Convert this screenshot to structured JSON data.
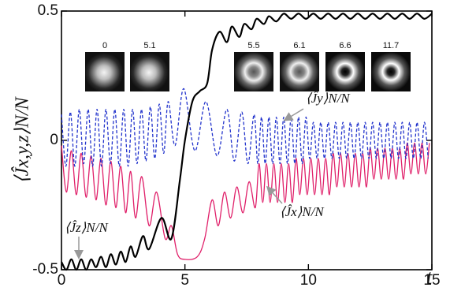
{
  "chart_data": {
    "type": "line",
    "x_label": "t",
    "y_label": "⟨Ĵx,y,z⟩N/N",
    "xlim": [
      0,
      15
    ],
    "ylim": [
      -0.5,
      0.5
    ],
    "xticks": [
      0,
      5,
      10,
      15
    ],
    "yticks": [
      -0.5,
      0,
      0.5
    ],
    "inset_times": [
      0,
      5.1,
      5.5,
      6.1,
      6.6,
      11.7
    ],
    "series": [
      {
        "name": "⟨Ĵz⟩N/N",
        "color": "#000000",
        "dash": false,
        "x": [
          0,
          0.2,
          0.4,
          0.6,
          0.8,
          1.0,
          1.2,
          1.4,
          1.6,
          1.8,
          2.0,
          2.2,
          2.4,
          2.6,
          2.8,
          3.0,
          3.3,
          3.55,
          4.05,
          4.45,
          4.8,
          5.0,
          5.3,
          5.6,
          5.9,
          6.1,
          6.4,
          6.7,
          6.9,
          7.2,
          7.4,
          7.7,
          7.9,
          8.2,
          8.4,
          8.7,
          9.0,
          9.3,
          9.6,
          9.9,
          10.2,
          10.5,
          10.8,
          11.1,
          11.4,
          11.7,
          12.0,
          12.3,
          12.6,
          12.9,
          13.2,
          13.5,
          13.8,
          14.1,
          14.4,
          14.7,
          15.0
        ],
        "values": [
          -0.47,
          -0.5,
          -0.46,
          -0.5,
          -0.46,
          -0.5,
          -0.46,
          -0.49,
          -0.45,
          -0.49,
          -0.44,
          -0.48,
          -0.43,
          -0.47,
          -0.41,
          -0.45,
          -0.37,
          -0.42,
          -0.3,
          -0.38,
          -0.15,
          0,
          0.15,
          0.19,
          0.22,
          0.35,
          0.42,
          0.38,
          0.44,
          0.4,
          0.45,
          0.43,
          0.47,
          0.45,
          0.48,
          0.46,
          0.49,
          0.47,
          0.49,
          0.47,
          0.49,
          0.47,
          0.49,
          0.47,
          0.49,
          0.47,
          0.49,
          0.47,
          0.49,
          0.47,
          0.49,
          0.47,
          0.49,
          0.47,
          0.49,
          0.47,
          0.49
        ]
      },
      {
        "name": "⟨Ĵy⟩N/N",
        "color": "#2233cc",
        "dash": true,
        "x": [
          0,
          0.18,
          0.36,
          0.54,
          0.72,
          0.9,
          1.08,
          1.26,
          1.44,
          1.62,
          1.8,
          1.98,
          2.16,
          2.34,
          2.52,
          2.7,
          2.88,
          3.06,
          3.24,
          3.42,
          3.6,
          3.78,
          3.96,
          4.14,
          4.32,
          4.6,
          4.95,
          5.4,
          5.85,
          6.3,
          6.7,
          7.0,
          7.3,
          7.55,
          7.8,
          7.95,
          8.1,
          8.25,
          8.4,
          8.55,
          8.7,
          8.85,
          9.0,
          9.15,
          9.3,
          9.45,
          9.6,
          9.75,
          9.9,
          10.05,
          10.2,
          10.35,
          10.5,
          10.65,
          10.8,
          10.95,
          11.1,
          11.25,
          11.4,
          11.55,
          11.7,
          11.85,
          12.0,
          12.15,
          12.3,
          12.45,
          12.6,
          12.75,
          12.9,
          13.05,
          13.2,
          13.35,
          13.5,
          13.65,
          13.8,
          13.95,
          14.1,
          14.25,
          14.4,
          14.55,
          14.7,
          14.85
        ],
        "values": [
          0.1,
          -0.1,
          0.11,
          -0.1,
          0.12,
          -0.09,
          0.12,
          -0.1,
          0.12,
          -0.1,
          0.12,
          -0.09,
          0.12,
          -0.1,
          0.12,
          -0.1,
          0.12,
          -0.09,
          0.12,
          -0.08,
          0.13,
          -0.07,
          0.14,
          -0.05,
          0.15,
          -0.02,
          0.2,
          -0.04,
          0.15,
          -0.06,
          0.12,
          -0.08,
          0.11,
          -0.09,
          0.1,
          -0.09,
          0.09,
          -0.09,
          0.09,
          -0.09,
          0.09,
          -0.09,
          0.09,
          -0.09,
          0.09,
          -0.09,
          0.09,
          -0.09,
          0.09,
          -0.07,
          0.07,
          -0.07,
          0.07,
          -0.07,
          0.07,
          -0.07,
          0.07,
          -0.07,
          0.07,
          -0.07,
          0.07,
          -0.07,
          0.07,
          -0.07,
          0.07,
          -0.07,
          0.07,
          -0.07,
          0.07,
          -0.07,
          0.07,
          -0.07,
          0.07,
          -0.07,
          0.07,
          -0.07,
          0.07,
          -0.07,
          0.07,
          -0.07,
          0.07,
          -0.07
        ]
      },
      {
        "name": "⟨Ĵx⟩N/N",
        "color": "#e0206a",
        "dash": false,
        "x": [
          0,
          0.2,
          0.4,
          0.6,
          0.8,
          1.0,
          1.2,
          1.4,
          1.6,
          1.8,
          2.0,
          2.2,
          2.4,
          2.6,
          2.8,
          3.0,
          3.25,
          3.55,
          3.85,
          4.2,
          4.45,
          4.7,
          5.0,
          5.5,
          5.8,
          6.1,
          6.35,
          6.6,
          6.85,
          7.1,
          7.35,
          7.6,
          7.85,
          8.0,
          8.15,
          8.3,
          8.45,
          8.6,
          8.75,
          8.9,
          9.05,
          9.2,
          9.35,
          9.5,
          9.65,
          9.8,
          9.95,
          10.1,
          10.25,
          10.4,
          10.55,
          10.7,
          10.85,
          11.0,
          11.15,
          11.3,
          11.45,
          11.6,
          11.75,
          11.9,
          12.05,
          12.2,
          12.35,
          12.5,
          12.65,
          12.8,
          12.95,
          13.1,
          13.25,
          13.4,
          13.55,
          13.7,
          13.85,
          14.0,
          14.15,
          14.3,
          14.45,
          14.6,
          14.75,
          14.9
        ],
        "values": [
          -0.02,
          -0.2,
          -0.04,
          -0.21,
          -0.05,
          -0.22,
          -0.06,
          -0.23,
          -0.07,
          -0.25,
          -0.08,
          -0.26,
          -0.1,
          -0.28,
          -0.12,
          -0.3,
          -0.14,
          -0.33,
          -0.2,
          -0.38,
          -0.33,
          -0.44,
          -0.46,
          -0.45,
          -0.38,
          -0.23,
          -0.33,
          -0.2,
          -0.3,
          -0.18,
          -0.28,
          -0.16,
          -0.26,
          -0.09,
          -0.24,
          -0.09,
          -0.24,
          -0.09,
          -0.24,
          -0.09,
          -0.24,
          -0.09,
          -0.24,
          -0.07,
          -0.21,
          -0.07,
          -0.21,
          -0.07,
          -0.21,
          -0.07,
          -0.21,
          -0.07,
          -0.21,
          -0.05,
          -0.18,
          -0.05,
          -0.18,
          -0.05,
          -0.18,
          -0.05,
          -0.18,
          -0.05,
          -0.18,
          -0.03,
          -0.15,
          -0.03,
          -0.15,
          -0.03,
          -0.15,
          -0.03,
          -0.15,
          -0.03,
          -0.15,
          -0.01,
          -0.13,
          -0.01,
          -0.13,
          -0.01,
          -0.13,
          -0.01
        ]
      }
    ]
  }
}
